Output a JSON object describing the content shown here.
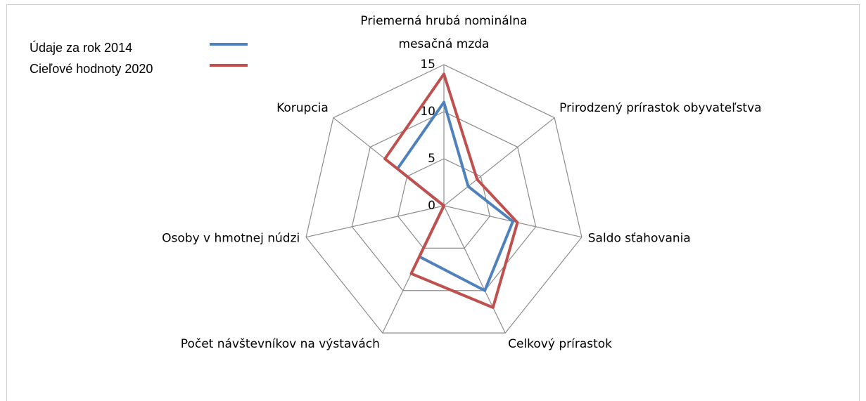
{
  "chart_data": {
    "type": "radar",
    "categories": [
      "Priemerná hrubá nominálna mesačná mzda",
      "Prirodzený prírastok obyvateľstva",
      "Saldo sťahovania",
      "Celkový prírastok",
      "Počet návštevníkov na výstavách",
      "Osoby v hmotnej núdzi",
      "Korupcia"
    ],
    "series": [
      {
        "name": "Údaje za rok 2014",
        "color": "#4f81bd",
        "values": [
          11,
          3.3,
          7.5,
          10,
          6,
          0,
          6.3
        ]
      },
      {
        "name": "Cieľové hodnoty 2020",
        "color": "#c0504d",
        "values": [
          14,
          4.5,
          8,
          12,
          8,
          0,
          8
        ]
      }
    ],
    "ylim": [
      0,
      15
    ],
    "yticks": [
      0,
      5,
      10,
      15
    ],
    "grid": true,
    "legend": "top-left"
  }
}
